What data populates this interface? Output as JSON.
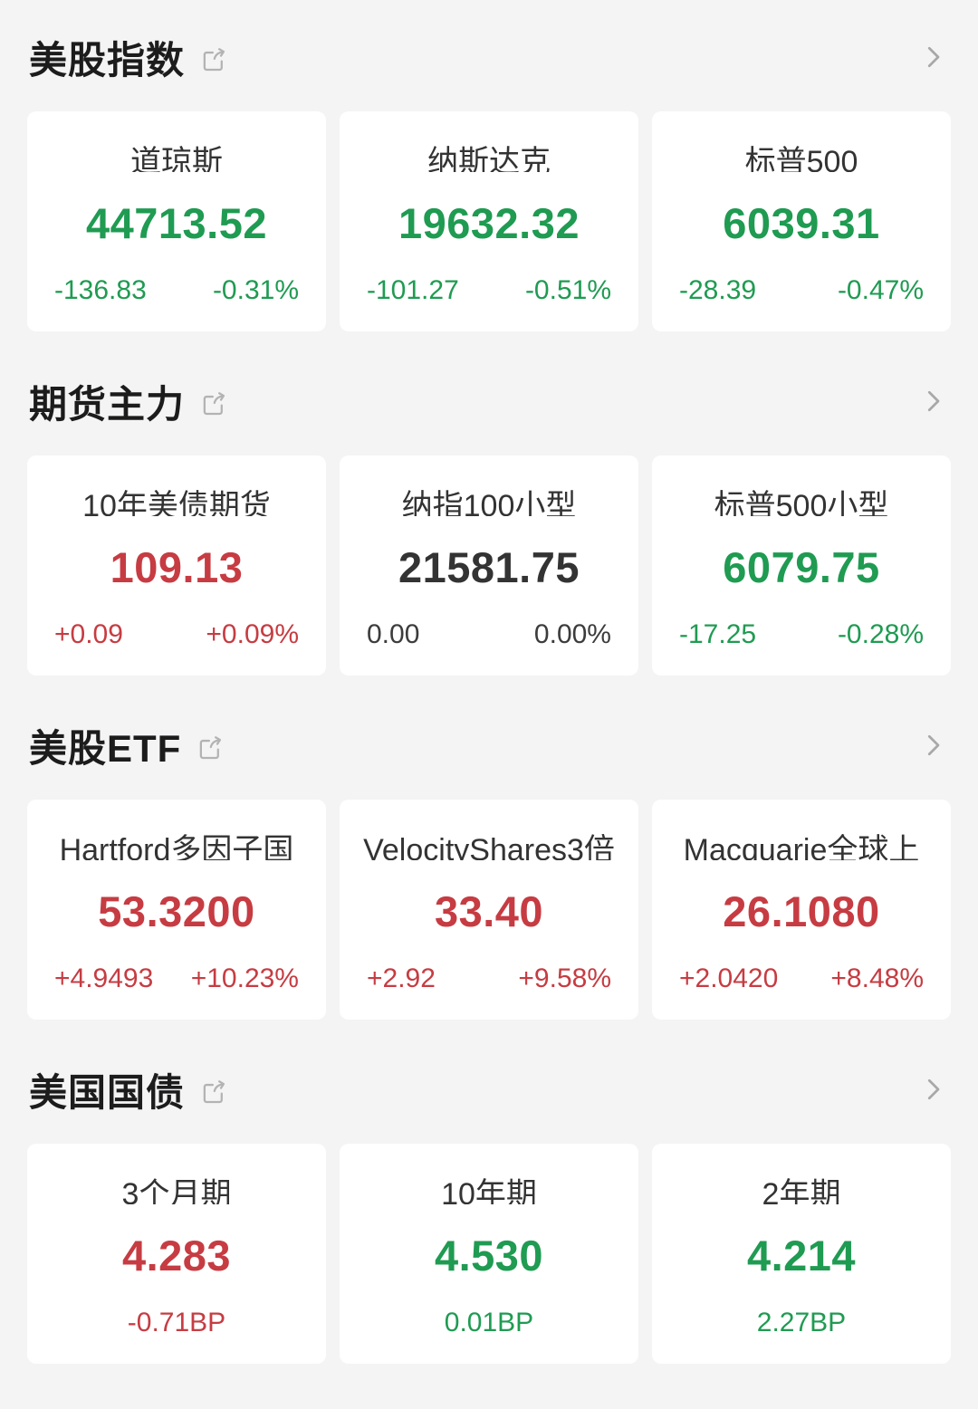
{
  "colors": {
    "up_red": "#c63c42",
    "down_green": "#1f9b52",
    "flat_neutral": "#333333",
    "background": "#f4f4f5",
    "card": "#ffffff",
    "title_text": "#1c1c1c",
    "icon_gray": "#b3b3b3"
  },
  "icons": {
    "external_link": "external-link-icon",
    "chevron_right": "chevron-right-icon"
  },
  "sections": [
    {
      "title": "美股指数",
      "cards": [
        {
          "name": "道琼斯",
          "price": "44713.52",
          "changes": [
            "-136.83",
            "-0.31%"
          ],
          "color": "green"
        },
        {
          "name": "纳斯达克",
          "price": "19632.32",
          "changes": [
            "-101.27",
            "-0.51%"
          ],
          "color": "green"
        },
        {
          "name": "标普500",
          "price": "6039.31",
          "changes": [
            "-28.39",
            "-0.47%"
          ],
          "color": "green"
        }
      ]
    },
    {
      "title": "期货主力",
      "cards": [
        {
          "name": "10年美债期货",
          "price": "109.13",
          "changes": [
            "+0.09",
            "+0.09%"
          ],
          "color": "red"
        },
        {
          "name": "纳指100小型",
          "price": "21581.75",
          "changes": [
            "0.00",
            "0.00%"
          ],
          "color": "neutral"
        },
        {
          "name": "标普500小型",
          "price": "6079.75",
          "changes": [
            "-17.25",
            "-0.28%"
          ],
          "color": "green"
        }
      ]
    },
    {
      "title": "美股ETF",
      "cards": [
        {
          "name": "Hartford多因子国",
          "price": "53.3200",
          "changes": [
            "+4.9493",
            "+10.23%"
          ],
          "color": "red"
        },
        {
          "name": "VelocityShares3倍",
          "price": "33.40",
          "changes": [
            "+2.92",
            "+9.58%"
          ],
          "color": "red"
        },
        {
          "name": "Macquarie全球上",
          "price": "26.1080",
          "changes": [
            "+2.0420",
            "+8.48%"
          ],
          "color": "red"
        }
      ]
    },
    {
      "title": "美国国债",
      "cards": [
        {
          "name": "3个月期",
          "price": "4.283",
          "changes": [
            "-0.71BP"
          ],
          "color": "red"
        },
        {
          "name": "10年期",
          "price": "4.530",
          "changes": [
            "0.01BP"
          ],
          "color": "green"
        },
        {
          "name": "2年期",
          "price": "4.214",
          "changes": [
            "2.27BP"
          ],
          "color": "green"
        }
      ]
    }
  ]
}
